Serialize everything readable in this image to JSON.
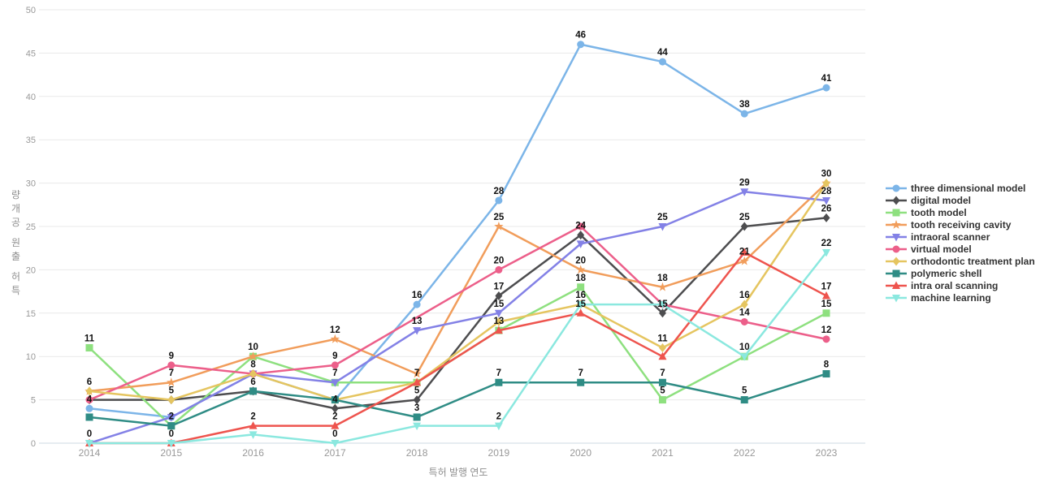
{
  "chart_data": {
    "type": "line",
    "title": "",
    "xlabel": "특허 발행 연도",
    "ylabel": "특허 출원 공개량",
    "x": [
      2014,
      2015,
      2016,
      2017,
      2018,
      2019,
      2020,
      2021,
      2022,
      2023
    ],
    "ylim": [
      0,
      50
    ],
    "yticks": [
      0,
      5,
      10,
      15,
      20,
      25,
      30,
      35,
      40,
      45,
      50
    ],
    "grid": "horizontal",
    "legend_position": "right",
    "series": [
      {
        "name": "three dimensional model",
        "color": "#7cb5e8",
        "marker": "circle",
        "values": [
          4,
          3,
          8,
          5,
          16,
          28,
          46,
          44,
          38,
          41
        ],
        "labels": [
          "4",
          "",
          "",
          "",
          "16",
          "28",
          "46",
          "44",
          "38",
          "41"
        ]
      },
      {
        "name": "digital model",
        "color": "#4d4d4f",
        "marker": "diamond",
        "values": [
          5,
          5,
          6,
          4,
          5,
          17,
          24,
          15,
          25,
          26
        ],
        "labels": [
          "",
          "",
          "",
          "4",
          "5",
          "17",
          "24",
          "15",
          "25",
          "26"
        ]
      },
      {
        "name": "tooth model",
        "color": "#8ee07f",
        "marker": "square",
        "values": [
          11,
          2,
          10,
          7,
          7,
          13,
          18,
          5,
          10,
          15
        ],
        "labels": [
          "11",
          "",
          "10",
          "",
          "7",
          "",
          "18",
          "5",
          "10",
          "15"
        ]
      },
      {
        "name": "tooth receiving cavity",
        "color": "#f19d5b",
        "marker": "star",
        "values": [
          6,
          7,
          10,
          12,
          8,
          25,
          20,
          18,
          21,
          30
        ],
        "labels": [
          "6",
          "7",
          "",
          "12",
          "",
          "25",
          "20",
          "18",
          "21",
          "30"
        ]
      },
      {
        "name": "intraoral scanner",
        "color": "#8381e6",
        "marker": "triangle-down",
        "values": [
          0,
          3,
          8,
          7,
          13,
          15,
          23,
          25,
          29,
          28
        ],
        "labels": [
          "",
          "",
          "",
          "7",
          "13",
          "15",
          "",
          "25",
          "29",
          "28"
        ]
      },
      {
        "name": "virtual model",
        "color": "#ec5f8a",
        "marker": "circle",
        "values": [
          5,
          9,
          8,
          9,
          null,
          20,
          25,
          16,
          14,
          12
        ],
        "labels": [
          "",
          "9",
          "",
          "9",
          "",
          "20",
          "",
          "",
          "14",
          "12"
        ]
      },
      {
        "name": "orthodontic treatment plan",
        "color": "#e5c560",
        "marker": "diamond",
        "values": [
          6,
          5,
          8,
          5,
          7,
          14,
          16,
          11,
          16,
          30
        ],
        "labels": [
          "",
          "5",
          "8",
          "",
          "",
          "",
          "",
          "11",
          "16",
          ""
        ]
      },
      {
        "name": "polymeric shell",
        "color": "#2f8c85",
        "marker": "square",
        "values": [
          3,
          2,
          6,
          5,
          3,
          7,
          7,
          7,
          5,
          8
        ],
        "labels": [
          "",
          "2",
          "6",
          "",
          "3",
          "7",
          "7",
          "7",
          "5",
          "8"
        ]
      },
      {
        "name": "intra oral scanning",
        "color": "#ee544e",
        "marker": "triangle-up",
        "values": [
          0,
          0,
          2,
          2,
          7,
          13,
          15,
          10,
          22,
          17
        ],
        "labels": [
          "0",
          "0",
          "2",
          "2",
          "",
          "13",
          "15",
          "",
          "",
          "17"
        ]
      },
      {
        "name": "machine learning",
        "color": "#8be8df",
        "marker": "triangle-down",
        "values": [
          0,
          0,
          1,
          0,
          2,
          2,
          16,
          16,
          10,
          22
        ],
        "labels": [
          "",
          "",
          "",
          "0",
          "",
          "2",
          "16",
          "",
          "",
          "22"
        ]
      }
    ]
  }
}
